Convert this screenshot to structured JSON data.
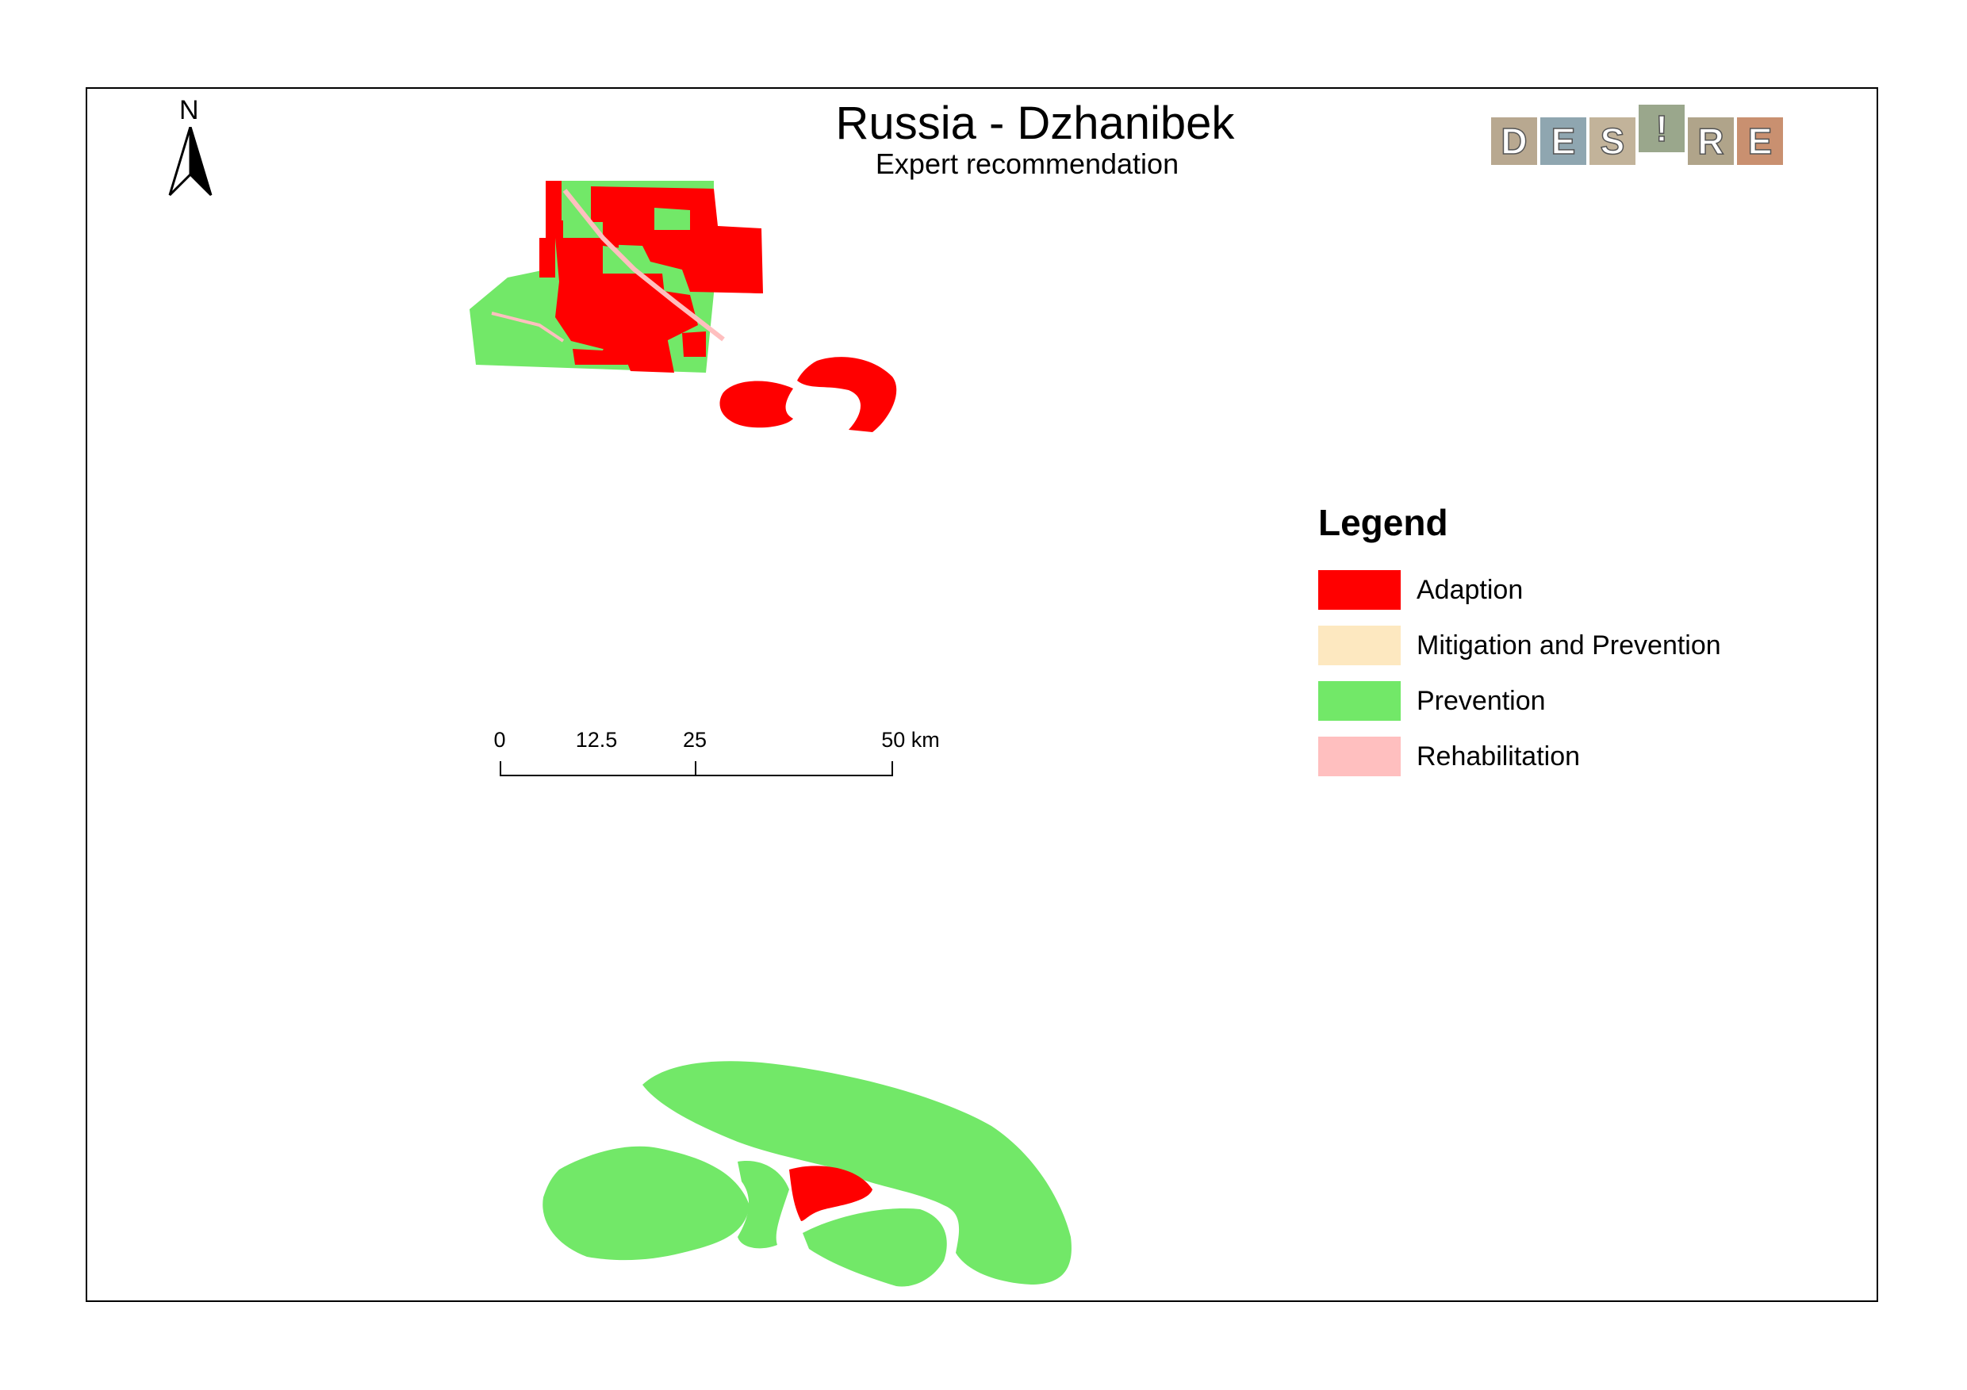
{
  "map": {
    "title": "Russia - Dzhanibek",
    "subtitle": "Expert recommendation",
    "north_label": "N",
    "logo_letters": [
      "D",
      "E",
      "S",
      "!",
      "R",
      "E"
    ],
    "legend": {
      "title": "Legend",
      "items": [
        {
          "label": "Adaption",
          "color": "#ff0000"
        },
        {
          "label": "Mitigation and Prevention",
          "color": "#fde8c0"
        },
        {
          "label": "Prevention",
          "color": "#72e868"
        },
        {
          "label": "Rehabilitation",
          "color": "#ffbfbf"
        }
      ]
    },
    "scalebar": {
      "labels": [
        "0",
        "12.5",
        "25",
        "50 km"
      ]
    }
  }
}
